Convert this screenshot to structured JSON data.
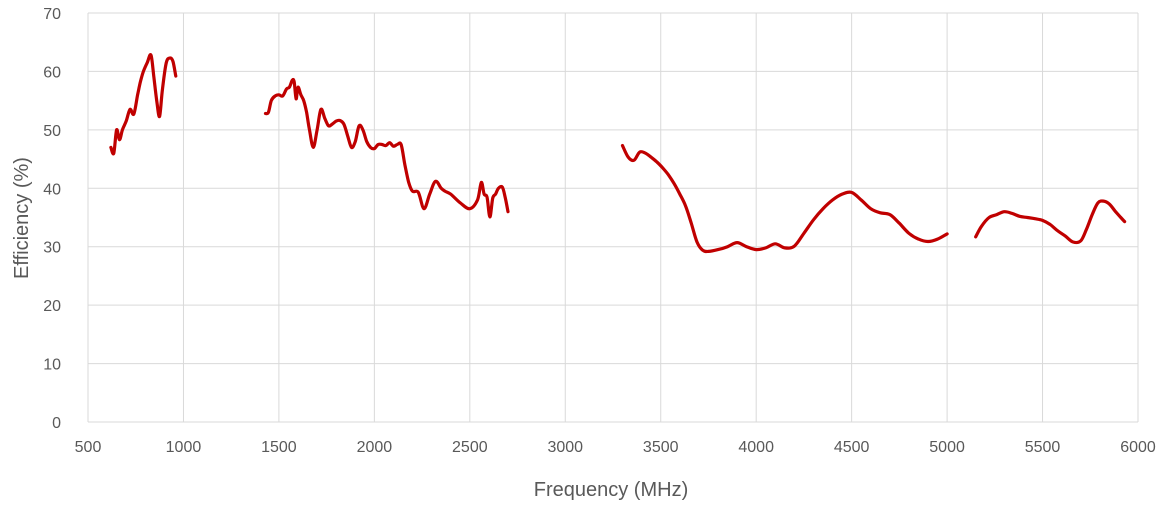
{
  "chart_data": {
    "type": "line",
    "title": "",
    "xlabel": "Frequency (MHz)",
    "ylabel": "Efficiency (%)",
    "xlim": [
      500,
      6000
    ],
    "ylim": [
      0,
      70
    ],
    "x_ticks": [
      500,
      1000,
      1500,
      2000,
      2500,
      3000,
      3500,
      4000,
      4500,
      5000,
      5500,
      6000
    ],
    "y_ticks": [
      0,
      10,
      20,
      30,
      40,
      50,
      60,
      70
    ],
    "grid": true,
    "legend": "none",
    "color": "#c00000",
    "series": [
      {
        "segments": [
          {
            "x": [
              620,
              635,
              650,
              665,
              680,
              700,
              720,
              740,
              760,
              775,
              790,
              810,
              830,
              845,
              860,
              875,
              890,
              910,
              930,
              945,
              960
            ],
            "y": [
              47,
              46,
              50,
              48.3,
              50,
              51.5,
              53.5,
              52.7,
              56,
              58.3,
              60,
              61.5,
              62.8,
              59,
              55,
              52.3,
              57,
              61.5,
              62.3,
              61.7,
              59.2
            ]
          },
          {
            "x": [
              1430,
              1445,
              1460,
              1480,
              1500,
              1520,
              1540,
              1555,
              1570,
              1580,
              1590,
              1600,
              1615,
              1630,
              1645,
              1660,
              1680,
              1700,
              1720,
              1740,
              1760,
              1780,
              1800,
              1820,
              1840,
              1860,
              1880,
              1900,
              1920,
              1940,
              1960,
              1980,
              2000,
              2020,
              2040,
              2060,
              2080,
              2100,
              2120,
              2140,
              2160,
              2180,
              2200,
              2230,
              2260,
              2290,
              2320,
              2350,
              2370,
              2400,
              2450,
              2500,
              2540,
              2560,
              2575,
              2590,
              2605,
              2620,
              2635,
              2650,
              2670,
              2685,
              2700
            ],
            "y": [
              52.8,
              53,
              55,
              55.8,
              56,
              55.8,
              57,
              57.3,
              58.5,
              58.2,
              55.3,
              57.3,
              56,
              55,
              53,
              50,
              47,
              50,
              53.5,
              52,
              50.7,
              51,
              51.5,
              51.6,
              51,
              49,
              47,
              48,
              50.7,
              50,
              48,
              47,
              46.8,
              47.5,
              47.5,
              47.3,
              47.8,
              47.2,
              47.5,
              47.5,
              44,
              41,
              39.5,
              39.3,
              36.5,
              39,
              41.2,
              40,
              39.5,
              39,
              37.5,
              36.5,
              38,
              41,
              39,
              38.5,
              35.1,
              38.3,
              39,
              40,
              40.2,
              38.5,
              36
            ]
          },
          {
            "x": [
              3300,
              3330,
              3360,
              3390,
              3420,
              3450,
              3480,
              3510,
              3540,
              3570,
              3600,
              3630,
              3660,
              3690,
              3720,
              3750,
              3800,
              3850,
              3900,
              3950,
              4000,
              4050,
              4100,
              4150,
              4200,
              4250,
              4300,
              4350,
              4400,
              4450,
              4500,
              4550,
              4600,
              4650,
              4700,
              4750,
              4800,
              4850,
              4900,
              4950,
              5000
            ],
            "y": [
              47.3,
              45.3,
              44.8,
              46.2,
              46,
              45.3,
              44.5,
              43.5,
              42.3,
              40.8,
              39,
              37,
              34,
              30.8,
              29.4,
              29.2,
              29.5,
              30,
              30.7,
              30,
              29.5,
              29.8,
              30.5,
              29.8,
              30.1,
              32.3,
              34.6,
              36.5,
              38,
              39,
              39.3,
              38,
              36.5,
              35.8,
              35.5,
              34,
              32.3,
              31.3,
              30.9,
              31.3,
              32.2
            ]
          },
          {
            "x": [
              5150,
              5180,
              5220,
              5260,
              5300,
              5340,
              5380,
              5420,
              5460,
              5500,
              5540,
              5580,
              5620,
              5660,
              5700,
              5730,
              5760,
              5790,
              5820,
              5850,
              5880,
              5910,
              5930
            ],
            "y": [
              31.7,
              33.5,
              35,
              35.5,
              36,
              35.7,
              35.2,
              35,
              34.8,
              34.5,
              33.8,
              32.7,
              31.8,
              30.8,
              31,
              33,
              35.5,
              37.5,
              37.8,
              37.3,
              36.1,
              35,
              34.3
            ]
          }
        ]
      }
    ]
  }
}
